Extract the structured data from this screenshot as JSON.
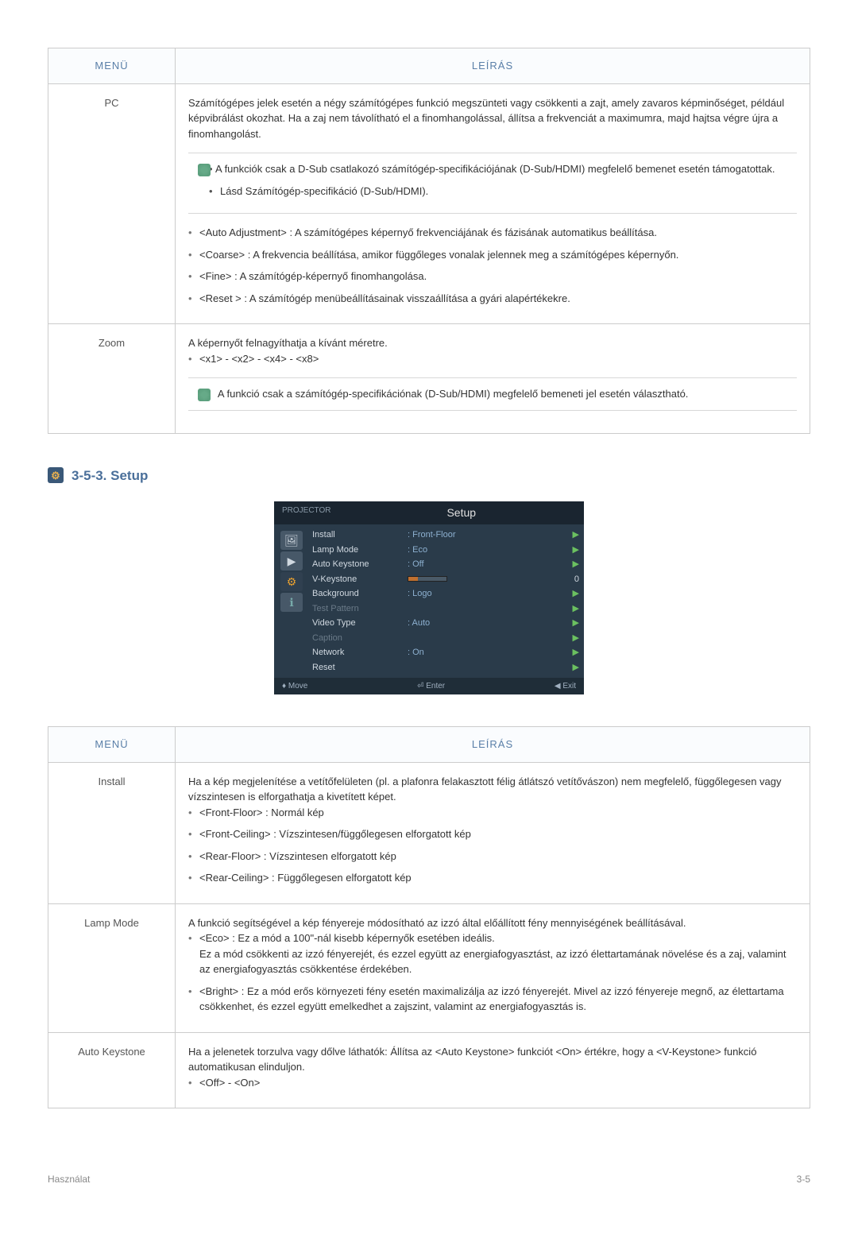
{
  "table1": {
    "headers": {
      "menu": "MENÜ",
      "desc": "LEÍRÁS"
    },
    "rows": {
      "pc": {
        "label": "PC",
        "intro": "Számítógépes jelek esetén a négy számítógépes funkció megszünteti vagy csökkenti a zajt, amely zavaros képminőséget, például képvibrálást okozhat. Ha a zaj nem távolítható el a finomhangolással, állítsa a frekvenciát a maximumra, majd hajtsa végre újra a finomhangolást.",
        "note1": "A funkciók csak a D-Sub csatlakozó számítógép-specifikációjának (D-Sub/HDMI) megfelelő bemenet esetén támogatottak.",
        "note2": "Lásd Számítógép-specifikáció (D-Sub/HDMI).",
        "b1": "<Auto Adjustment> : A számítógépes képernyő frekvenciájának és fázisának automatikus beállítása.",
        "b2": "<Coarse> : A frekvencia beállítása, amikor függőleges vonalak jelennek meg a számítógépes képernyőn.",
        "b3": "<Fine> : A számítógép-képernyő finomhangolása.",
        "b4": "<Reset > : A számítógép menübeállításainak visszaállítása a gyári alapértékekre."
      },
      "zoom": {
        "label": "Zoom",
        "intro": "A képernyőt felnagyíthatja a kívánt méretre.",
        "b1": "<x1> - <x2> - <x4> - <x8>",
        "note1": "A funkció csak a számítógép-specifikációnak (D-Sub/HDMI) megfelelő bemeneti jel esetén választható."
      }
    }
  },
  "sectionTitle": "3-5-3. Setup",
  "menushot": {
    "tab": "PROJECTOR",
    "title": "Setup",
    "items": [
      {
        "l": "Install",
        "v": ": Front-Floor",
        "a": "▶"
      },
      {
        "l": "Lamp Mode",
        "v": ": Eco",
        "a": "▶"
      },
      {
        "l": "Auto Keystone",
        "v": ": Off",
        "a": "▶"
      },
      {
        "l": "V-Keystone",
        "v": "",
        "a": "0"
      },
      {
        "l": "Background",
        "v": ": Logo",
        "a": "▶"
      },
      {
        "l": "Test Pattern",
        "v": "",
        "a": "▶"
      },
      {
        "l": "Video Type",
        "v": ": Auto",
        "a": "▶"
      },
      {
        "l": "Caption",
        "v": "",
        "a": "▶"
      },
      {
        "l": "Network",
        "v": ": On",
        "a": "▶"
      },
      {
        "l": "Reset",
        "v": "",
        "a": "▶"
      }
    ],
    "ftr": {
      "move": "♦ Move",
      "enter": "⏎ Enter",
      "exit": "◀ Exit"
    }
  },
  "table2": {
    "headers": {
      "menu": "MENÜ",
      "desc": "LEÍRÁS"
    },
    "rows": {
      "install": {
        "label": "Install",
        "intro": "Ha a kép megjelenítése a vetítőfelületen (pl. a plafonra felakasztott félig átlátszó vetítővászon) nem megfelelő, függőlegesen vagy vízszintesen is elforgathatja a kivetített képet.",
        "b1": "<Front-Floor> : Normál kép",
        "b2": "<Front-Ceiling> : Vízszintesen/függőlegesen elforgatott kép",
        "b3": "<Rear-Floor> : Vízszintesen elforgatott kép",
        "b4": "<Rear-Ceiling> : Függőlegesen elforgatott kép"
      },
      "lamp": {
        "label": "Lamp Mode",
        "intro": "A funkció segítségével a kép fényereje módosítható az izzó által előállított fény mennyiségének beállításával.",
        "b1a": "<Eco> : Ez a mód a 100\"-nál kisebb képernyők esetében ideális.",
        "b1b": "Ez a mód csökkenti az izzó fényerejét, és ezzel együtt az energiafogyasztást, az izzó élettartamának növelése és a zaj, valamint az energiafogyasztás csökkentése érdekében.",
        "b2": "<Bright> : Ez a mód erős környezeti fény esetén maximalizálja az izzó fényerejét. Mivel az izzó fényereje megnő, az élettartama csökkenhet, és ezzel együtt emelkedhet a zajszint, valamint az energiafogyasztás is."
      },
      "auto": {
        "label": "Auto Keystone",
        "intro": "Ha a jelenetek torzulva vagy dőlve láthatók: Állítsa az <Auto Keystone> funkciót <On> értékre, hogy a <V-Keystone> funkció automatikusan elinduljon.",
        "b1": "<Off> - <On>"
      }
    }
  },
  "footer": {
    "left": "Használat",
    "right": "3-5"
  }
}
